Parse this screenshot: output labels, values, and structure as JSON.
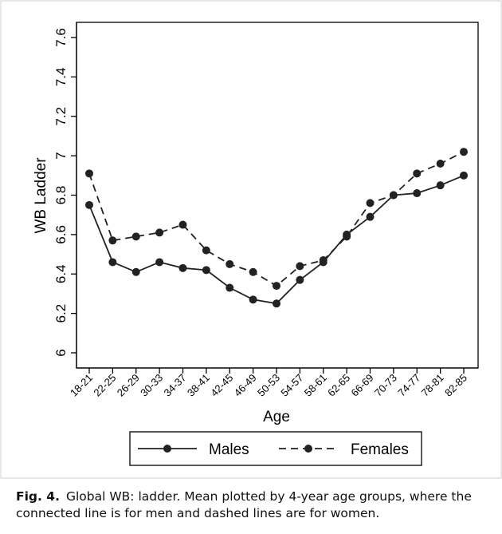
{
  "chart_data": {
    "type": "line",
    "xlabel": "Age",
    "ylabel": "WB Ladder",
    "ylim": [
      6,
      7.6
    ],
    "yticks": [
      "6",
      "6.2",
      "6.4",
      "6.6",
      "6.8",
      "7",
      "7.2",
      "7.4",
      "7.6"
    ],
    "categories": [
      "18-21",
      "22-25",
      "26-29",
      "30-33",
      "34-37",
      "38-41",
      "42-45",
      "46-49",
      "50-53",
      "54-57",
      "58-61",
      "62-65",
      "66-69",
      "70-73",
      "74-77",
      "78-81",
      "82-85"
    ],
    "series": [
      {
        "name": "Males",
        "style": "solid",
        "values": [
          6.75,
          6.46,
          6.41,
          6.46,
          6.43,
          6.42,
          6.33,
          6.27,
          6.25,
          6.37,
          6.46,
          6.6,
          6.69,
          6.8,
          6.81,
          6.85,
          6.9
        ]
      },
      {
        "name": "Females",
        "style": "dashed",
        "values": [
          6.91,
          6.57,
          6.59,
          6.61,
          6.65,
          6.52,
          6.45,
          6.41,
          6.34,
          6.44,
          6.47,
          6.59,
          6.76,
          6.8,
          6.91,
          6.96,
          7.02
        ]
      }
    ],
    "legend_position": "bottom",
    "grid": false,
    "color": "#222222"
  },
  "caption": {
    "label": "Fig. 4.",
    "text": "Global WB: ladder. Mean plotted by 4-year age groups, where the connected line is for men and dashed lines are for women."
  }
}
